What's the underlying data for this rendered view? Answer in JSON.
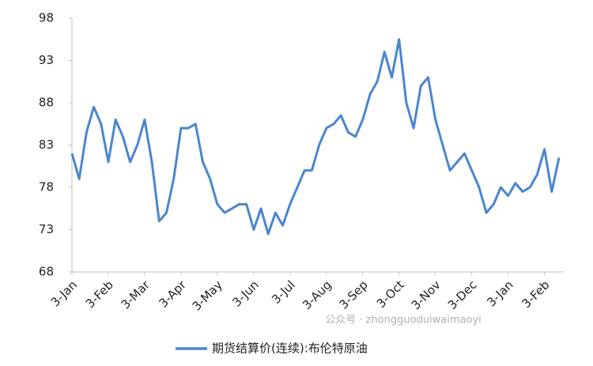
{
  "chart_data": {
    "type": "line",
    "categories": [
      "3-Jan",
      null,
      null,
      null,
      null,
      "3-Feb",
      null,
      null,
      null,
      null,
      "3-Mar",
      null,
      null,
      null,
      null,
      "3-Apr",
      null,
      null,
      null,
      null,
      "3-May",
      null,
      null,
      null,
      null,
      "3-Jun",
      null,
      null,
      null,
      null,
      "3-Jul",
      null,
      null,
      null,
      null,
      "3-Aug",
      null,
      null,
      null,
      null,
      "3-Sep",
      null,
      null,
      null,
      null,
      "3-Oct",
      null,
      null,
      null,
      null,
      "3-Nov",
      null,
      null,
      null,
      null,
      "3-Dec",
      null,
      null,
      null,
      null,
      "3-Jan",
      null,
      null,
      null,
      null,
      "3-Feb",
      null,
      null
    ],
    "series": [
      {
        "name": "期货结算价(连续):布伦特原油",
        "color": "#4a86d0",
        "values": [
          82,
          79,
          84.5,
          87.5,
          85.5,
          81,
          86,
          84,
          81,
          83,
          86,
          81,
          74,
          75,
          79,
          85,
          85,
          85.5,
          81,
          79,
          76,
          75,
          75.5,
          76,
          76,
          73,
          75.5,
          72.5,
          75,
          73.5,
          76,
          78,
          80,
          80,
          83,
          85,
          85.5,
          86.5,
          84.5,
          84,
          86,
          89,
          90.5,
          94,
          91,
          95.5,
          88,
          85,
          90,
          91,
          86,
          83,
          80,
          81,
          82,
          80,
          78,
          75,
          76,
          78,
          77,
          78.5,
          77.5,
          78,
          79.5,
          82.5,
          77.5,
          81.5
        ]
      }
    ],
    "ylim": [
      68,
      98
    ],
    "yticks": [
      68,
      73,
      78,
      83,
      88,
      93,
      98
    ],
    "watermark": "公众号 · zhongguoduiwaimaoyi"
  }
}
